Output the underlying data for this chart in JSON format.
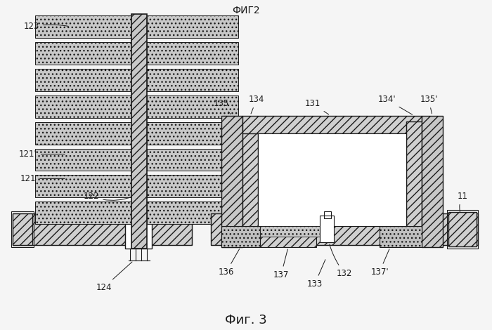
{
  "title_top": "ФИГ2",
  "title_bottom": "Фиг. 3",
  "bg_color": "#f5f5f5",
  "line_color": "#1a1a1a",
  "fig_width": 7.0,
  "fig_height": 4.7,
  "dpi": 100
}
